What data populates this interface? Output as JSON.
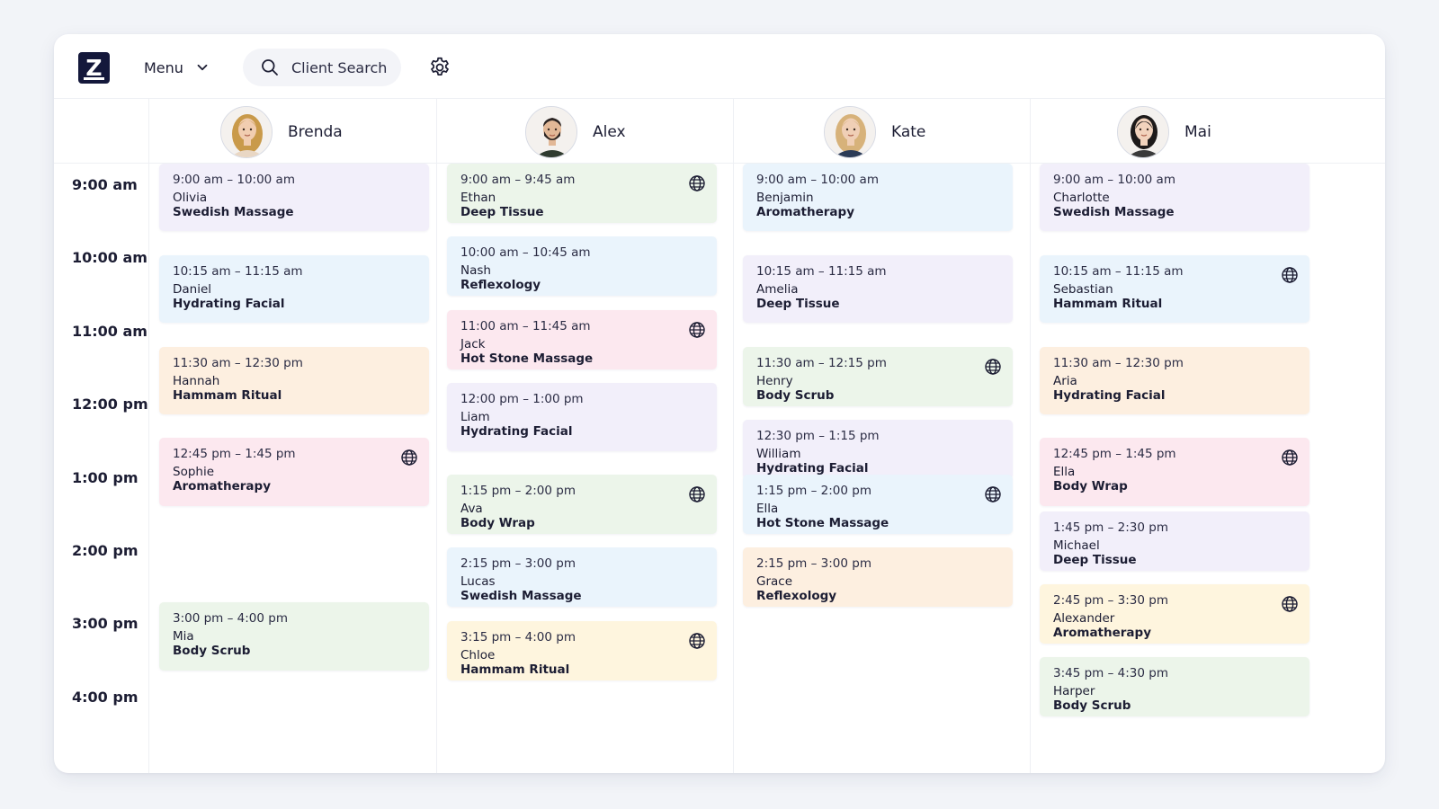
{
  "app": {
    "logo_letter": "Z"
  },
  "toolbar": {
    "menu_label": "Menu",
    "search_placeholder": "Client Search"
  },
  "colors": {
    "purple": "#f2effa",
    "blue": "#eaf4fc",
    "orange": "#fdefe0",
    "pink": "#fce8ef",
    "green": "#ecf5ea",
    "yellow": "#fef5de",
    "brand": "#14183b"
  },
  "times": [
    "9:00 am",
    "10:00 am",
    "11:00 am",
    "12:00 pm",
    "1:00 pm",
    "2:00 pm",
    "3:00 pm",
    "4:00 pm"
  ],
  "staff": [
    {
      "name": "Brenda",
      "appointments": [
        {
          "time": "9:00 am – 10:00 am",
          "client": "Olivia",
          "service": "Swedish Massage",
          "color": "purple",
          "online": false
        },
        {
          "time": "10:15 am – 11:15 am",
          "client": "Daniel",
          "service": "Hydrating Facial",
          "color": "blue",
          "online": false
        },
        {
          "time": "11:30 am – 12:30 pm",
          "client": "Hannah",
          "service": "Hammam Ritual",
          "color": "orange",
          "online": false
        },
        {
          "time": "12:45 pm – 1:45 pm",
          "client": "Sophie",
          "service": "Aromatherapy",
          "color": "pink",
          "online": true
        },
        {
          "time": "3:00 pm – 4:00 pm",
          "client": "Mia",
          "service": "Body Scrub",
          "color": "green",
          "online": false
        }
      ]
    },
    {
      "name": "Alex",
      "appointments": [
        {
          "time": "9:00 am – 9:45 am",
          "client": "Ethan",
          "service": "Deep Tissue",
          "color": "green",
          "online": true
        },
        {
          "time": "10:00 am – 10:45 am",
          "client": "Nash",
          "service": "Reflexology",
          "color": "blue",
          "online": false
        },
        {
          "time": "11:00 am – 11:45 am",
          "client": "Jack",
          "service": "Hot Stone Massage",
          "color": "pink",
          "online": true
        },
        {
          "time": "12:00 pm – 1:00 pm",
          "client": "Liam",
          "service": "Hydrating Facial",
          "color": "purple",
          "online": false
        },
        {
          "time": "1:15 pm – 2:00 pm",
          "client": "Ava",
          "service": "Body Wrap",
          "color": "green",
          "online": true
        },
        {
          "time": "2:15 pm – 3:00 pm",
          "client": "Lucas",
          "service": "Swedish Massage",
          "color": "blue",
          "online": false
        },
        {
          "time": "3:15 pm – 4:00 pm",
          "client": "Chloe",
          "service": "Hammam Ritual",
          "color": "yellow",
          "online": true
        }
      ]
    },
    {
      "name": "Kate",
      "appointments": [
        {
          "time": "9:00 am – 10:00 am",
          "client": "Benjamin",
          "service": "Aromatherapy",
          "color": "blue",
          "online": false
        },
        {
          "time": "10:15 am – 11:15 am",
          "client": "Amelia",
          "service": "Deep Tissue",
          "color": "purple",
          "online": false
        },
        {
          "time": "11:30 am – 12:15 pm",
          "client": "Henry",
          "service": "Body Scrub",
          "color": "green",
          "online": true
        },
        {
          "time": "12:30 pm – 1:15 pm",
          "client": "William",
          "service": "Hydrating Facial",
          "color": "purple",
          "online": false
        },
        {
          "time": "1:15 pm – 2:00 pm",
          "client": "Ella",
          "service": "Hot Stone Massage",
          "color": "blue",
          "online": true
        },
        {
          "time": "2:15 pm – 3:00 pm",
          "client": "Grace",
          "service": "Reflexology",
          "color": "orange",
          "online": false
        }
      ]
    },
    {
      "name": "Mai",
      "appointments": [
        {
          "time": "9:00 am – 10:00 am",
          "client": "Charlotte",
          "service": "Swedish Massage",
          "color": "purple",
          "online": false
        },
        {
          "time": "10:15 am – 11:15 am",
          "client": "Sebastian",
          "service": "Hammam Ritual",
          "color": "blue",
          "online": true
        },
        {
          "time": "11:30 am – 12:30 pm",
          "client": "Aria",
          "service": "Hydrating Facial",
          "color": "orange",
          "online": false
        },
        {
          "time": "12:45 pm – 1:45 pm",
          "client": "Ella",
          "service": "Body Wrap",
          "color": "pink",
          "online": true
        },
        {
          "time": "1:45 pm – 2:30 pm",
          "client": "Michael",
          "service": "Deep Tissue",
          "color": "purple",
          "online": false
        },
        {
          "time": "2:45 pm – 3:30 pm",
          "client": "Alexander",
          "service": "Aromatherapy",
          "color": "yellow",
          "online": true
        },
        {
          "time": "3:45 pm – 4:30 pm",
          "client": "Harper",
          "service": "Body Scrub",
          "color": "green",
          "online": false
        }
      ]
    }
  ]
}
